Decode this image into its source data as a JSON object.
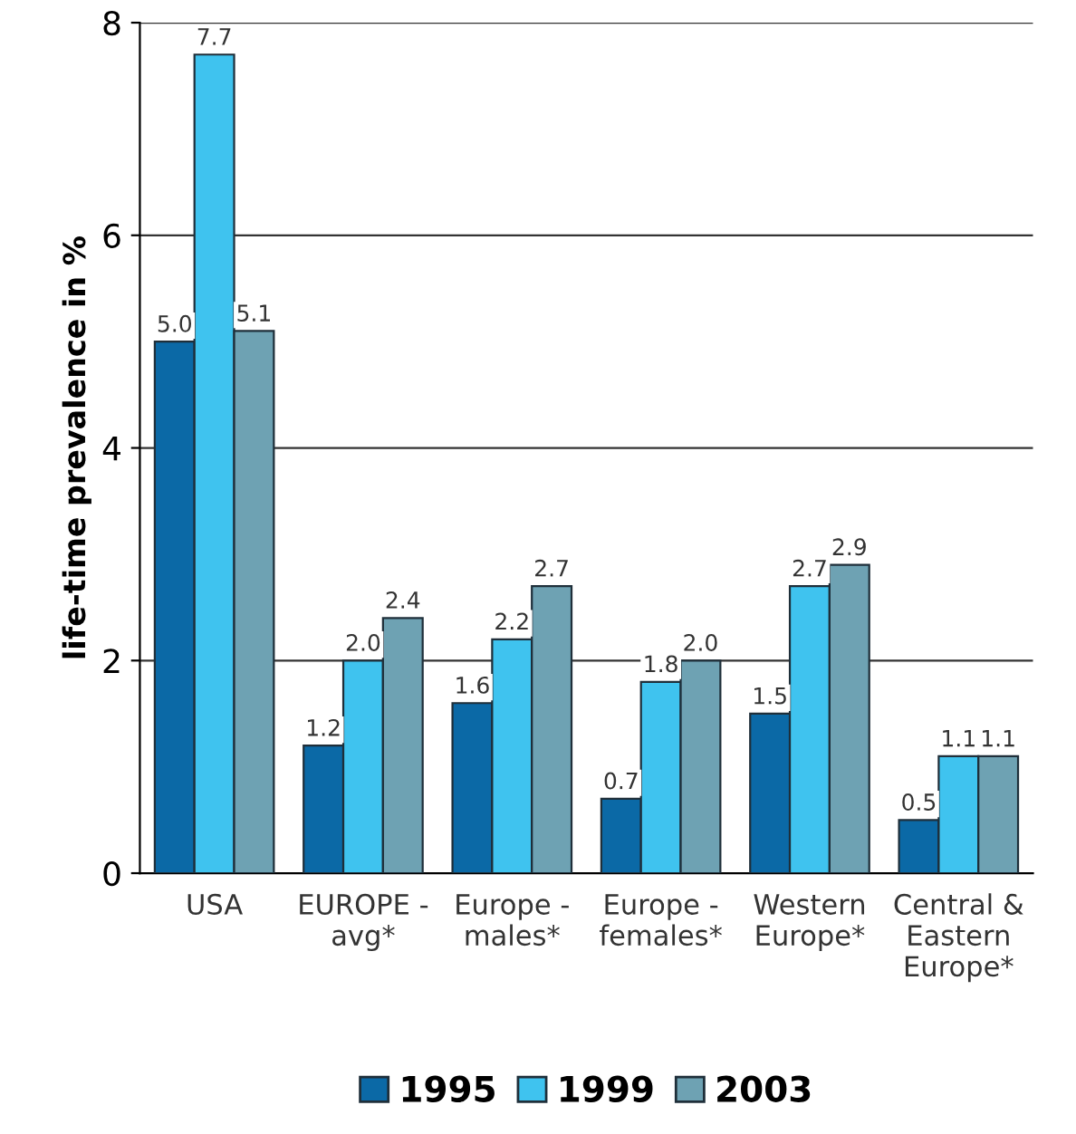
{
  "chart_data": {
    "type": "bar",
    "ylabel": "life-time prevalence in %",
    "categories": [
      "USA",
      "EUROPE -\navg*",
      "Europe -\nmales*",
      "Europe -\nfemales*",
      "Western\nEurope*",
      "Central &\nEastern\nEurope*"
    ],
    "series": [
      {
        "name": "1995",
        "color": "#0b69a6",
        "values": [
          5.0,
          1.2,
          1.6,
          0.7,
          1.5,
          0.5
        ],
        "value_labels": [
          "5.0",
          "1.2",
          "1.6",
          "0.7",
          "1.5",
          "0.5"
        ]
      },
      {
        "name": "1999",
        "color": "#3fc3ef",
        "values": [
          7.7,
          2.0,
          2.2,
          1.8,
          2.7,
          1.1
        ],
        "value_labels": [
          "7.7",
          "2.0",
          "2.2",
          "1.8",
          "2.7",
          "1.1"
        ]
      },
      {
        "name": "2003",
        "color": "#6ea2b3",
        "values": [
          5.1,
          2.4,
          2.7,
          2.0,
          2.9,
          1.1
        ],
        "value_labels": [
          "5.1",
          "2.4",
          "2.7",
          "2.0",
          "2.9",
          "1.1"
        ]
      }
    ],
    "ylim": [
      0,
      8
    ],
    "yticks": [
      0,
      2,
      4,
      6,
      8
    ],
    "grid": "y",
    "legend": "bottom"
  }
}
